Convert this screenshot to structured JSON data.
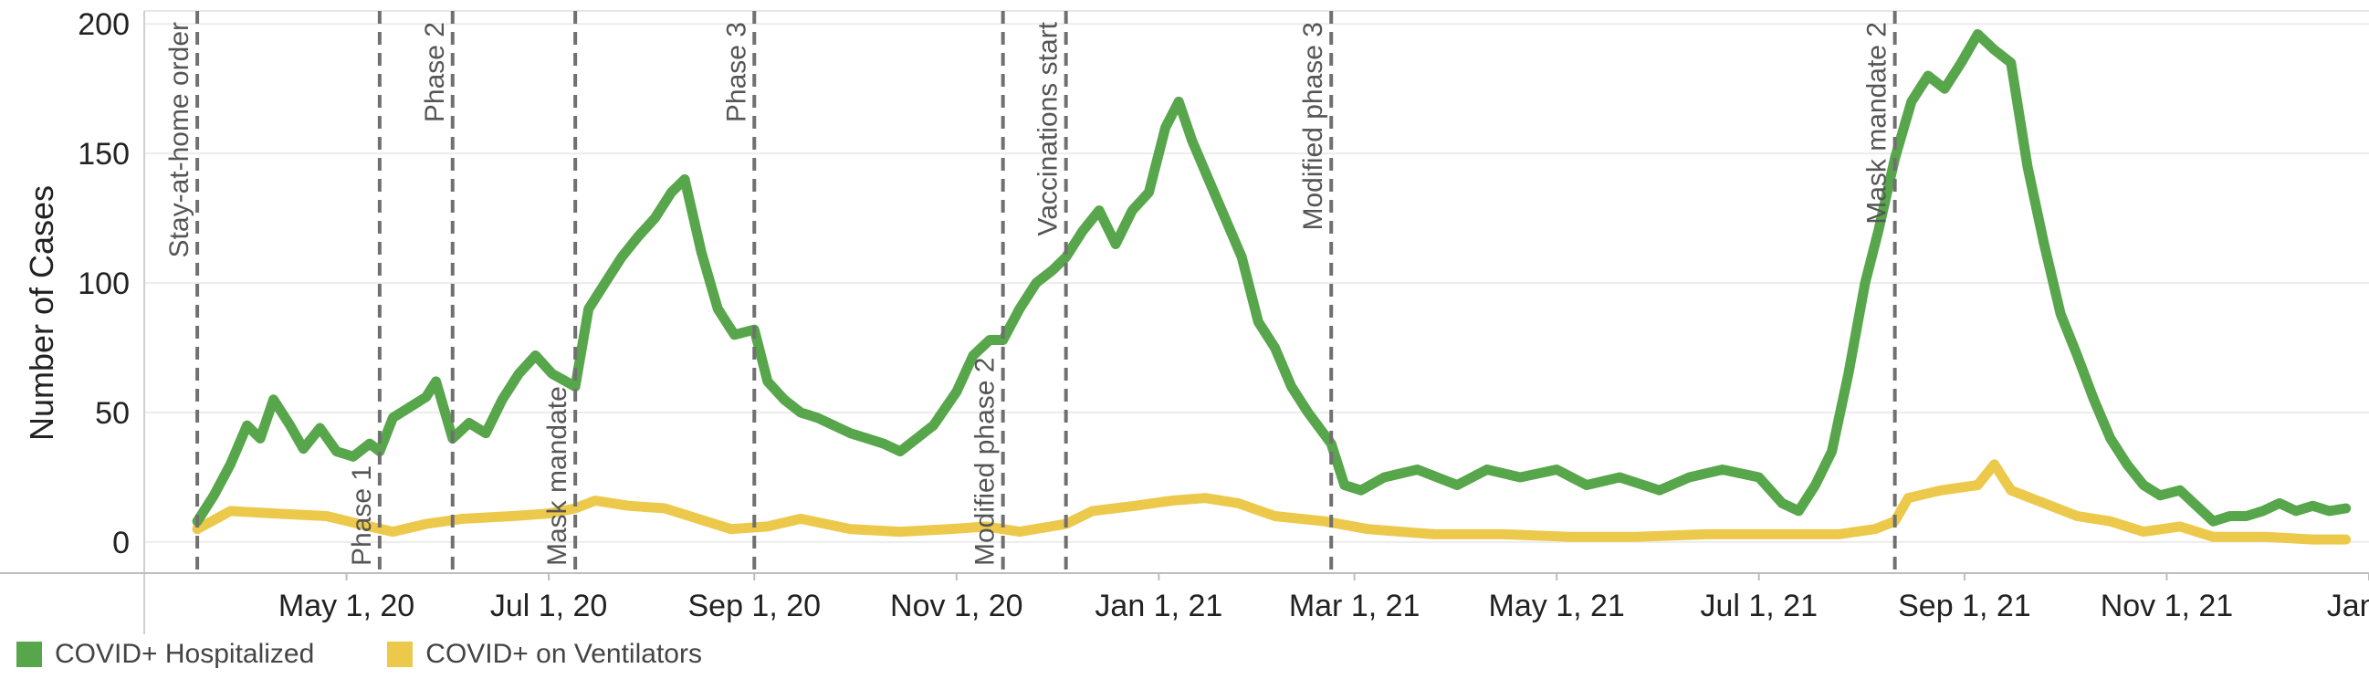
{
  "chart_data": {
    "type": "line",
    "title": "",
    "xlabel": "",
    "ylabel": "Number of Cases",
    "ylim": [
      -12,
      205
    ],
    "xlim": [
      "2020-03-01",
      "2022-01-01"
    ],
    "y_ticks": [
      0,
      50,
      100,
      150,
      200
    ],
    "x_ticks": [
      {
        "date": "2020-05-01",
        "label": "May 1, 20"
      },
      {
        "date": "2020-07-01",
        "label": "Jul 1, 20"
      },
      {
        "date": "2020-09-01",
        "label": "Sep 1, 20"
      },
      {
        "date": "2020-11-01",
        "label": "Nov 1, 20"
      },
      {
        "date": "2021-01-01",
        "label": "Jan 1, 21"
      },
      {
        "date": "2021-03-01",
        "label": "Mar 1, 21"
      },
      {
        "date": "2021-05-01",
        "label": "May 1, 21"
      },
      {
        "date": "2021-07-01",
        "label": "Jul 1, 21"
      },
      {
        "date": "2021-09-01",
        "label": "Sep 1, 21"
      },
      {
        "date": "2021-11-01",
        "label": "Nov 1, 21"
      },
      {
        "date": "2022-01-01",
        "label": "Jan 1,"
      }
    ],
    "grid": true,
    "legend_position": "bottom-left",
    "events": [
      {
        "date": "2020-03-17",
        "label": "Stay-at-home order",
        "label_side": "top"
      },
      {
        "date": "2020-05-11",
        "label": "Phase 1",
        "label_side": "bottom"
      },
      {
        "date": "2020-06-02",
        "label": "Phase 2",
        "label_side": "top"
      },
      {
        "date": "2020-07-09",
        "label": "Mask mandate",
        "label_side": "bottom"
      },
      {
        "date": "2020-09-01",
        "label": "Phase 3",
        "label_side": "top"
      },
      {
        "date": "2020-11-15",
        "label": "Modified phase 2",
        "label_side": "bottom"
      },
      {
        "date": "2020-12-04",
        "label": "Vaccinations start",
        "label_side": "top"
      },
      {
        "date": "2021-02-22",
        "label": "Modified phase 3",
        "label_side": "top"
      },
      {
        "date": "2021-08-11",
        "label": "Mask mandate 2",
        "label_side": "top"
      }
    ],
    "series": [
      {
        "name": "COVID+ Hospitalized",
        "color": "#58a64b",
        "points": [
          [
            "2020-03-17",
            8
          ],
          [
            "2020-03-22",
            18
          ],
          [
            "2020-03-27",
            30
          ],
          [
            "2020-04-01",
            45
          ],
          [
            "2020-04-05",
            40
          ],
          [
            "2020-04-09",
            55
          ],
          [
            "2020-04-14",
            45
          ],
          [
            "2020-04-18",
            36
          ],
          [
            "2020-04-23",
            44
          ],
          [
            "2020-04-28",
            35
          ],
          [
            "2020-05-03",
            33
          ],
          [
            "2020-05-08",
            38
          ],
          [
            "2020-05-11",
            35
          ],
          [
            "2020-05-15",
            48
          ],
          [
            "2020-05-20",
            52
          ],
          [
            "2020-05-25",
            56
          ],
          [
            "2020-05-28",
            62
          ],
          [
            "2020-06-02",
            40
          ],
          [
            "2020-06-07",
            46
          ],
          [
            "2020-06-12",
            42
          ],
          [
            "2020-06-17",
            55
          ],
          [
            "2020-06-22",
            65
          ],
          [
            "2020-06-27",
            72
          ],
          [
            "2020-07-02",
            65
          ],
          [
            "2020-07-09",
            60
          ],
          [
            "2020-07-13",
            90
          ],
          [
            "2020-07-18",
            100
          ],
          [
            "2020-07-23",
            110
          ],
          [
            "2020-07-28",
            118
          ],
          [
            "2020-08-02",
            125
          ],
          [
            "2020-08-07",
            135
          ],
          [
            "2020-08-11",
            140
          ],
          [
            "2020-08-16",
            112
          ],
          [
            "2020-08-21",
            90
          ],
          [
            "2020-08-26",
            80
          ],
          [
            "2020-09-01",
            82
          ],
          [
            "2020-09-05",
            62
          ],
          [
            "2020-09-10",
            55
          ],
          [
            "2020-09-15",
            50
          ],
          [
            "2020-09-20",
            48
          ],
          [
            "2020-09-25",
            45
          ],
          [
            "2020-09-30",
            42
          ],
          [
            "2020-10-05",
            40
          ],
          [
            "2020-10-10",
            38
          ],
          [
            "2020-10-15",
            35
          ],
          [
            "2020-10-20",
            40
          ],
          [
            "2020-10-25",
            45
          ],
          [
            "2020-11-01",
            58
          ],
          [
            "2020-11-06",
            72
          ],
          [
            "2020-11-11",
            78
          ],
          [
            "2020-11-15",
            78
          ],
          [
            "2020-11-20",
            90
          ],
          [
            "2020-11-25",
            100
          ],
          [
            "2020-11-30",
            105
          ],
          [
            "2020-12-04",
            110
          ],
          [
            "2020-12-09",
            120
          ],
          [
            "2020-12-14",
            128
          ],
          [
            "2020-12-19",
            115
          ],
          [
            "2020-12-24",
            128
          ],
          [
            "2020-12-29",
            135
          ],
          [
            "2021-01-03",
            160
          ],
          [
            "2021-01-07",
            170
          ],
          [
            "2021-01-11",
            155
          ],
          [
            "2021-01-16",
            140
          ],
          [
            "2021-01-21",
            125
          ],
          [
            "2021-01-26",
            110
          ],
          [
            "2021-01-31",
            85
          ],
          [
            "2021-02-05",
            75
          ],
          [
            "2021-02-10",
            60
          ],
          [
            "2021-02-15",
            50
          ],
          [
            "2021-02-22",
            38
          ],
          [
            "2021-02-26",
            22
          ],
          [
            "2021-03-03",
            20
          ],
          [
            "2021-03-10",
            25
          ],
          [
            "2021-03-20",
            28
          ],
          [
            "2021-04-01",
            22
          ],
          [
            "2021-04-10",
            28
          ],
          [
            "2021-04-20",
            25
          ],
          [
            "2021-05-01",
            28
          ],
          [
            "2021-05-10",
            22
          ],
          [
            "2021-05-20",
            25
          ],
          [
            "2021-06-01",
            20
          ],
          [
            "2021-06-10",
            25
          ],
          [
            "2021-06-20",
            28
          ],
          [
            "2021-07-01",
            25
          ],
          [
            "2021-07-08",
            15
          ],
          [
            "2021-07-13",
            12
          ],
          [
            "2021-07-18",
            22
          ],
          [
            "2021-07-23",
            35
          ],
          [
            "2021-07-28",
            65
          ],
          [
            "2021-08-02",
            100
          ],
          [
            "2021-08-06",
            120
          ],
          [
            "2021-08-11",
            148
          ],
          [
            "2021-08-16",
            170
          ],
          [
            "2021-08-21",
            180
          ],
          [
            "2021-08-26",
            175
          ],
          [
            "2021-08-31",
            185
          ],
          [
            "2021-09-05",
            196
          ],
          [
            "2021-09-10",
            190
          ],
          [
            "2021-09-15",
            185
          ],
          [
            "2021-09-20",
            145
          ],
          [
            "2021-09-25",
            115
          ],
          [
            "2021-09-30",
            88
          ],
          [
            "2021-10-05",
            72
          ],
          [
            "2021-10-10",
            55
          ],
          [
            "2021-10-15",
            40
          ],
          [
            "2021-10-20",
            30
          ],
          [
            "2021-10-25",
            22
          ],
          [
            "2021-10-30",
            18
          ],
          [
            "2021-11-05",
            20
          ],
          [
            "2021-11-10",
            14
          ],
          [
            "2021-11-15",
            8
          ],
          [
            "2021-11-20",
            10
          ],
          [
            "2021-11-25",
            10
          ],
          [
            "2021-11-30",
            12
          ],
          [
            "2021-12-05",
            15
          ],
          [
            "2021-12-10",
            12
          ],
          [
            "2021-12-15",
            14
          ],
          [
            "2021-12-20",
            12
          ],
          [
            "2021-12-25",
            13
          ]
        ]
      },
      {
        "name": "COVID+ on Ventilators",
        "color": "#ecc94b",
        "points": [
          [
            "2020-03-17",
            5
          ],
          [
            "2020-03-27",
            12
          ],
          [
            "2020-04-10",
            11
          ],
          [
            "2020-04-25",
            10
          ],
          [
            "2020-05-08",
            6
          ],
          [
            "2020-05-15",
            4
          ],
          [
            "2020-05-25",
            7
          ],
          [
            "2020-06-05",
            9
          ],
          [
            "2020-06-20",
            10
          ],
          [
            "2020-07-01",
            11
          ],
          [
            "2020-07-09",
            13
          ],
          [
            "2020-07-15",
            16
          ],
          [
            "2020-07-25",
            14
          ],
          [
            "2020-08-05",
            13
          ],
          [
            "2020-08-15",
            9
          ],
          [
            "2020-08-25",
            5
          ],
          [
            "2020-09-05",
            6
          ],
          [
            "2020-09-15",
            9
          ],
          [
            "2020-09-30",
            5
          ],
          [
            "2020-10-15",
            4
          ],
          [
            "2020-10-30",
            5
          ],
          [
            "2020-11-10",
            6
          ],
          [
            "2020-11-20",
            4
          ],
          [
            "2020-12-04",
            7
          ],
          [
            "2020-12-12",
            12
          ],
          [
            "2020-12-25",
            14
          ],
          [
            "2021-01-05",
            16
          ],
          [
            "2021-01-15",
            17
          ],
          [
            "2021-01-25",
            15
          ],
          [
            "2021-02-05",
            10
          ],
          [
            "2021-02-20",
            8
          ],
          [
            "2021-03-05",
            5
          ],
          [
            "2021-03-25",
            3
          ],
          [
            "2021-04-15",
            3
          ],
          [
            "2021-05-05",
            2
          ],
          [
            "2021-05-25",
            2
          ],
          [
            "2021-06-15",
            3
          ],
          [
            "2021-07-05",
            3
          ],
          [
            "2021-07-25",
            3
          ],
          [
            "2021-08-05",
            5
          ],
          [
            "2021-08-11",
            8
          ],
          [
            "2021-08-15",
            17
          ],
          [
            "2021-08-25",
            20
          ],
          [
            "2021-09-05",
            22
          ],
          [
            "2021-09-10",
            30
          ],
          [
            "2021-09-15",
            20
          ],
          [
            "2021-09-25",
            15
          ],
          [
            "2021-10-05",
            10
          ],
          [
            "2021-10-15",
            8
          ],
          [
            "2021-10-25",
            4
          ],
          [
            "2021-11-05",
            6
          ],
          [
            "2021-11-15",
            2
          ],
          [
            "2021-12-01",
            2
          ],
          [
            "2021-12-15",
            1
          ],
          [
            "2021-12-25",
            1
          ]
        ]
      }
    ]
  }
}
